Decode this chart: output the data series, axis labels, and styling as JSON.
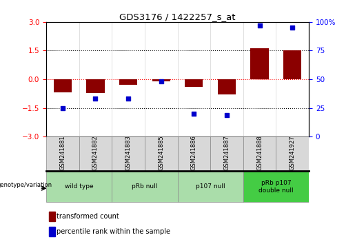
{
  "title": "GDS3176 / 1422257_s_at",
  "samples": [
    "GSM241881",
    "GSM241882",
    "GSM241883",
    "GSM241885",
    "GSM241886",
    "GSM241887",
    "GSM241888",
    "GSM241927"
  ],
  "bar_values": [
    -0.7,
    -0.72,
    -0.3,
    -0.1,
    -0.4,
    -0.8,
    1.62,
    1.5
  ],
  "scatter_values": [
    25,
    33,
    33,
    48,
    20,
    19,
    97,
    95
  ],
  "bar_color": "#8B0000",
  "scatter_color": "#0000CC",
  "groups": [
    {
      "label": "wild type",
      "start": 0,
      "end": 2,
      "color": "#aaddaa"
    },
    {
      "label": "pRb null",
      "start": 2,
      "end": 4,
      "color": "#aaddaa"
    },
    {
      "label": "p107 null",
      "start": 4,
      "end": 6,
      "color": "#aaddaa"
    },
    {
      "label": "pRb p107\ndouble null",
      "start": 6,
      "end": 8,
      "color": "#44cc44"
    }
  ],
  "group_header": "genotype/variation",
  "legend_bar_label": "transformed count",
  "legend_scatter_label": "percentile rank within the sample",
  "ylim_left": [
    -3,
    3
  ],
  "ylim_right": [
    0,
    100
  ],
  "yticks_left": [
    -3,
    -1.5,
    0,
    1.5,
    3
  ],
  "yticks_right": [
    0,
    25,
    50,
    75,
    100
  ],
  "hlines": [
    -1.5,
    0.0,
    1.5
  ],
  "hline_colors": [
    "black",
    "red",
    "black"
  ],
  "hline_styles": [
    "dotted",
    "dotted",
    "dotted"
  ]
}
